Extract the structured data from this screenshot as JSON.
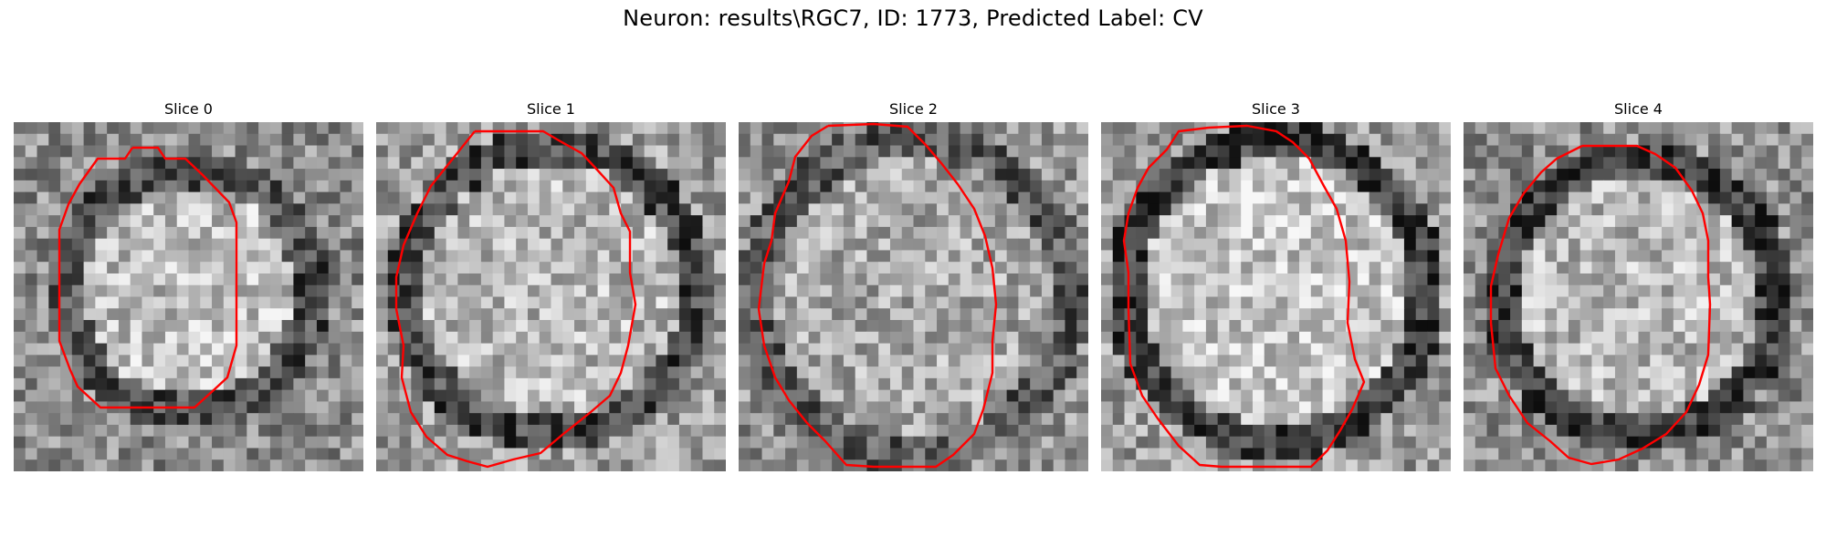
{
  "figure": {
    "title": "Neuron: results\\RGC7, ID: 1773, Predicted Label: CV"
  },
  "panels": [
    {
      "title": "Slice 0"
    },
    {
      "title": "Slice 1"
    },
    {
      "title": "Slice 2"
    },
    {
      "title": "Slice 3"
    },
    {
      "title": "Slice 4"
    }
  ],
  "colors": {
    "contour": "#ff0000",
    "colormap": "gray"
  }
}
